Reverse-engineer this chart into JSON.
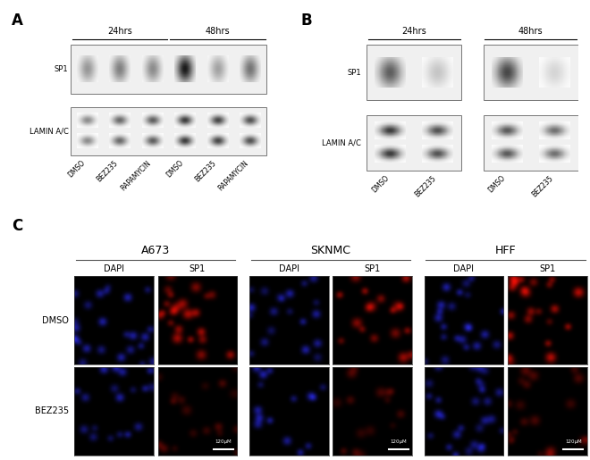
{
  "panel_A_label": "A",
  "panel_B_label": "B",
  "panel_C_label": "C",
  "panel_A_row_labels": [
    "SP1",
    "LAMIN A/C"
  ],
  "panel_A_x_labels": [
    "DMSO",
    "BEZ235",
    "RAPAMYCIN",
    "DMSO",
    "BEZ235",
    "RAPAMYCIN"
  ],
  "panel_A_sp1_bands": [
    0.45,
    0.55,
    0.5,
    1.0,
    0.4,
    0.6
  ],
  "panel_A_lamin_bands": [
    0.5,
    0.65,
    0.7,
    0.85,
    0.8,
    0.75
  ],
  "panel_B_row_labels": [
    "SP1",
    "LAMIN A/C"
  ],
  "panel_B_panels": [
    {
      "label": "24hrs",
      "lanes": [
        "DMSO",
        "BEZ235"
      ],
      "sp1": [
        0.7,
        0.25
      ],
      "lamin": [
        0.85,
        0.75
      ]
    },
    {
      "label": "48hrs",
      "lanes": [
        "DMSO",
        "BEZ235"
      ],
      "sp1": [
        0.8,
        0.18
      ],
      "lamin": [
        0.72,
        0.62
      ]
    }
  ],
  "panel_C_col_groups": [
    "A673",
    "SKNMC",
    "HFF"
  ],
  "panel_C_row_labels": [
    "DMSO",
    "BEZ235"
  ],
  "panel_C_sub_labels": [
    "DAPI",
    "SP1"
  ],
  "scale_bar_label": "120μM",
  "bg_color": "#ffffff"
}
